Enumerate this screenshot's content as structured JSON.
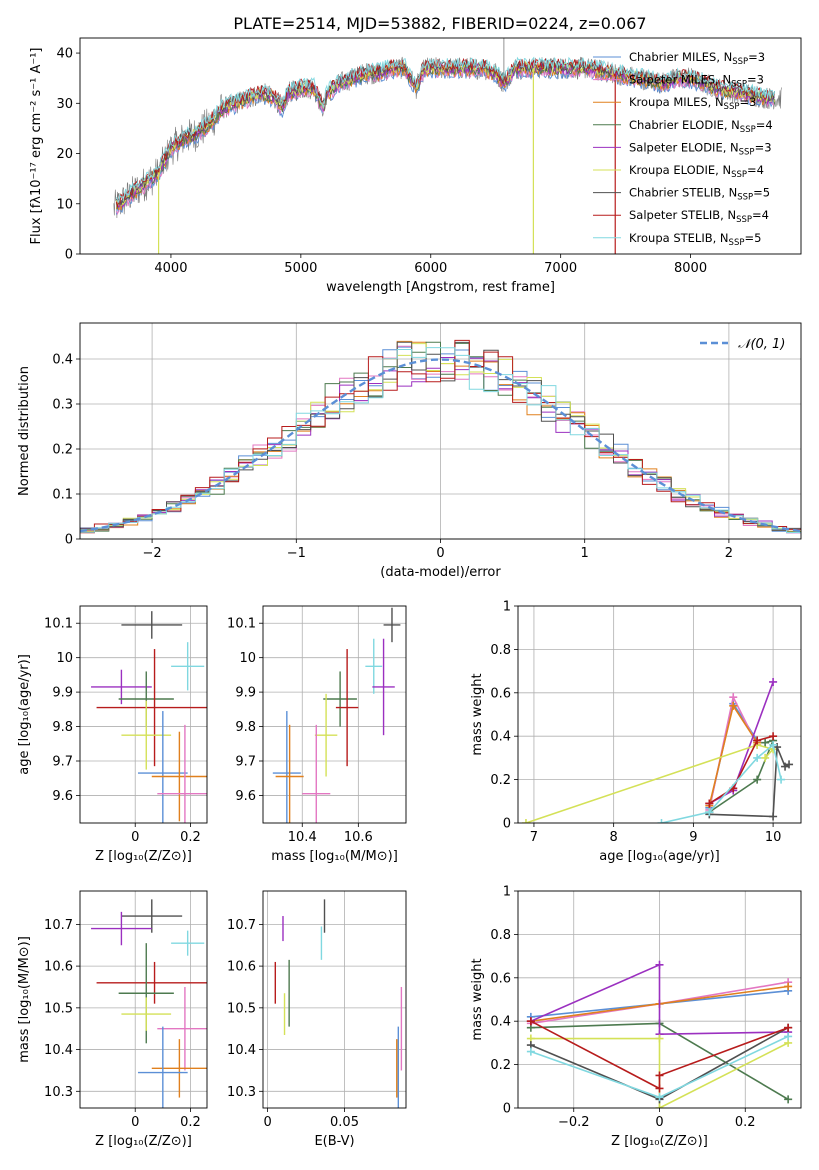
{
  "figure_title": "PLATE=2514, MJD=53882, FIBERID=0224, z=0.067",
  "colors": {
    "Chabrier MILES": "#5b8fd6",
    "Salpeter MILES": "#e377c2",
    "Kroupa MILES": "#e0801e",
    "Chabrier ELODIE": "#4d7a4f",
    "Salpeter ELODIE": "#9b30c0",
    "Kroupa ELODIE": "#d4e157",
    "Chabrier STELIB": "#505050",
    "Salpeter STELIB": "#b71c1c",
    "Kroupa STELIB": "#80d8e0"
  },
  "chart_data": [
    {
      "id": "spectrum",
      "type": "line",
      "title": "PLATE=2514, MJD=53882, FIBERID=0224, z=0.067",
      "xlabel": "wavelength [Angstrom, rest frame]",
      "ylabel": "Flux [fλ10⁻¹⁷ erg cm⁻² s⁻¹ A⁻¹]",
      "xlim": [
        3300,
        8850
      ],
      "ylim": [
        0,
        43
      ],
      "xticks": [
        4000,
        5000,
        6000,
        7000,
        8000
      ],
      "yticks": [
        0,
        10,
        20,
        30,
        40
      ],
      "legend_position": "upper-right",
      "legend": [
        {
          "prefix": "Chabrier MILES, N",
          "sub": "SSP",
          "suffix": "=3"
        },
        {
          "prefix": "Salpeter MILES, N",
          "sub": "SSP",
          "suffix": "=3"
        },
        {
          "prefix": "Kroupa MILES, N",
          "sub": "SSP",
          "suffix": "=3"
        },
        {
          "prefix": "Chabrier ELODIE, N",
          "sub": "SSP",
          "suffix": "=4"
        },
        {
          "prefix": "Salpeter ELODIE, N",
          "sub": "SSP",
          "suffix": "=3"
        },
        {
          "prefix": "Kroupa ELODIE, N",
          "sub": "SSP",
          "suffix": "=4"
        },
        {
          "prefix": "Chabrier STELIB, N",
          "sub": "SSP",
          "suffix": "=5"
        },
        {
          "prefix": "Salpeter STELIB, N",
          "sub": "SSP",
          "suffix": "=4"
        },
        {
          "prefix": "Kroupa STELIB, N",
          "sub": "SSP",
          "suffix": "=5"
        }
      ],
      "continuum": [
        [
          3560,
          9
        ],
        [
          3700,
          12
        ],
        [
          3800,
          14
        ],
        [
          3900,
          16
        ],
        [
          3960,
          19
        ],
        [
          4000,
          21
        ],
        [
          4100,
          23
        ],
        [
          4200,
          24
        ],
        [
          4300,
          26
        ],
        [
          4400,
          29
        ],
        [
          4500,
          30
        ],
        [
          4600,
          31
        ],
        [
          4700,
          32
        ],
        [
          4800,
          31
        ],
        [
          4860,
          29
        ],
        [
          4900,
          32
        ],
        [
          5000,
          33
        ],
        [
          5100,
          33
        ],
        [
          5175,
          29
        ],
        [
          5200,
          32
        ],
        [
          5300,
          34
        ],
        [
          5400,
          35
        ],
        [
          5500,
          36
        ],
        [
          5600,
          36
        ],
        [
          5700,
          37
        ],
        [
          5800,
          37
        ],
        [
          5890,
          33
        ],
        [
          5950,
          37
        ],
        [
          6000,
          37
        ],
        [
          6100,
          37
        ],
        [
          6200,
          37
        ],
        [
          6300,
          37
        ],
        [
          6400,
          37
        ],
        [
          6500,
          36
        ],
        [
          6563,
          34
        ],
        [
          6650,
          37
        ],
        [
          6800,
          37
        ],
        [
          7000,
          37
        ],
        [
          7200,
          37
        ],
        [
          7400,
          36
        ],
        [
          7600,
          35
        ],
        [
          7800,
          34
        ],
        [
          7900,
          35
        ],
        [
          8000,
          35
        ],
        [
          8200,
          33
        ],
        [
          8400,
          32
        ],
        [
          8600,
          31
        ],
        [
          8700,
          31
        ]
      ],
      "spikes": [
        {
          "x": 6563,
          "peak": 43
        },
        {
          "x": 6790,
          "drop_to": 0,
          "series": "Kroupa ELODIE"
        },
        {
          "x": 7420,
          "drop_to": 0,
          "series": "Salpeter STELIB"
        },
        {
          "x": 3905,
          "drop_to": 0,
          "series": "Kroupa ELODIE"
        }
      ]
    },
    {
      "id": "residual_histogram",
      "type": "line",
      "xlabel": "(data-model)/error",
      "ylabel": "Normed distribution",
      "xlim": [
        -2.5,
        2.5
      ],
      "ylim": [
        0,
        0.48
      ],
      "xticks": [
        -2,
        -1,
        0,
        1,
        2
      ],
      "yticks": [
        0.0,
        0.1,
        0.2,
        0.3,
        0.4
      ],
      "grid": true,
      "legend_position": "upper-right",
      "gaussian_label": "𝒩(0, 1)",
      "gaussian_color": "#5b8fd6",
      "bin_width": 0.1
    },
    {
      "id": "age_vs_Z",
      "type": "scatter",
      "error_bars": true,
      "xlabel": "Z [log₁₀(Z/Z⊙)]",
      "ylabel": "age  [log₁₀(age/yr)]",
      "xlim": [
        -0.2,
        0.26
      ],
      "ylim": [
        9.52,
        10.15
      ],
      "xticks": [
        0.0,
        0.2
      ],
      "yticks": [
        9.6,
        9.7,
        9.8,
        9.9,
        10.0,
        10.1
      ],
      "grid": true,
      "points": [
        {
          "series": "Chabrier STELIB",
          "x": 0.06,
          "y": 10.095,
          "ex": 0.11,
          "ey": 0.04
        },
        {
          "series": "Kroupa STELIB",
          "x": 0.19,
          "y": 9.975,
          "ex": 0.06,
          "ey": 0.07
        },
        {
          "series": "Salpeter ELODIE",
          "x": -0.05,
          "y": 9.915,
          "ex": 0.11,
          "ey": 0.05
        },
        {
          "series": "Chabrier ELODIE",
          "x": 0.04,
          "y": 9.88,
          "ex": 0.1,
          "ey": 0.08
        },
        {
          "series": "Salpeter STELIB",
          "x": 0.07,
          "y": 9.855,
          "ex": 0.21,
          "ey": 0.17
        },
        {
          "series": "Kroupa ELODIE",
          "x": 0.04,
          "y": 9.775,
          "ex": 0.09,
          "ey": 0.1
        },
        {
          "series": "Chabrier MILES",
          "x": 0.1,
          "y": 9.665,
          "ex": 0.09,
          "ey": 0.18
        },
        {
          "series": "Kroupa MILES",
          "x": 0.16,
          "y": 9.655,
          "ex": 0.1,
          "ey": 0.13
        },
        {
          "series": "Salpeter MILES",
          "x": 0.18,
          "y": 9.605,
          "ex": 0.1,
          "ey": 0.2
        }
      ]
    },
    {
      "id": "age_vs_mass",
      "type": "scatter",
      "error_bars": true,
      "xlabel": "mass [log₁₀(M/M⊙)]",
      "ylabel": "",
      "xlim": [
        10.26,
        10.77
      ],
      "ylim": [
        9.52,
        10.15
      ],
      "xticks": [
        10.4,
        10.6
      ],
      "yticks": [
        9.6,
        9.7,
        9.8,
        9.9,
        10.0,
        10.1
      ],
      "grid": true,
      "points": [
        {
          "series": "Chabrier STELIB",
          "x": 10.72,
          "y": 10.095,
          "ex": 0.03,
          "ey": 0.05
        },
        {
          "series": "Kroupa STELIB",
          "x": 10.655,
          "y": 9.975,
          "ex": 0.03,
          "ey": 0.08
        },
        {
          "series": "Salpeter ELODIE",
          "x": 10.69,
          "y": 9.915,
          "ex": 0.04,
          "ey": 0.14
        },
        {
          "series": "Chabrier ELODIE",
          "x": 10.535,
          "y": 9.88,
          "ex": 0.06,
          "ey": 0.08
        },
        {
          "series": "Salpeter STELIB",
          "x": 10.56,
          "y": 9.855,
          "ex": 0.04,
          "ey": 0.17
        },
        {
          "series": "Kroupa ELODIE",
          "x": 10.485,
          "y": 9.775,
          "ex": 0.04,
          "ey": 0.12
        },
        {
          "series": "Chabrier MILES",
          "x": 10.345,
          "y": 9.665,
          "ex": 0.05,
          "ey": 0.18
        },
        {
          "series": "Kroupa MILES",
          "x": 10.355,
          "y": 9.655,
          "ex": 0.05,
          "ey": 0.15
        },
        {
          "series": "Salpeter MILES",
          "x": 10.45,
          "y": 9.605,
          "ex": 0.05,
          "ey": 0.2
        }
      ]
    },
    {
      "id": "weight_vs_age",
      "type": "line",
      "xlabel": "age  [log₁₀(age/yr)]",
      "ylabel": "mass weight",
      "xlim": [
        6.8,
        10.35
      ],
      "ylim": [
        0,
        1.0
      ],
      "xticks": [
        7,
        8,
        9,
        10
      ],
      "yticks": [
        0.0,
        0.2,
        0.4,
        0.6,
        0.8,
        1.0
      ],
      "grid": true,
      "series": [
        {
          "name": "Chabrier MILES",
          "points": [
            [
              9.2,
              0.07
            ],
            [
              9.5,
              0.55
            ],
            [
              9.8,
              0.38
            ]
          ]
        },
        {
          "name": "Salpeter MILES",
          "points": [
            [
              9.2,
              0.06
            ],
            [
              9.5,
              0.58
            ],
            [
              9.8,
              0.36
            ]
          ]
        },
        {
          "name": "Kroupa MILES",
          "points": [
            [
              9.2,
              0.08
            ],
            [
              9.5,
              0.54
            ],
            [
              9.8,
              0.37
            ]
          ]
        },
        {
          "name": "Chabrier ELODIE",
          "points": [
            [
              9.2,
              0.05
            ],
            [
              9.8,
              0.2
            ],
            [
              10.0,
              0.38
            ],
            [
              9.9,
              0.37
            ]
          ]
        },
        {
          "name": "Salpeter ELODIE",
          "points": [
            [
              9.2,
              0.09
            ],
            [
              9.5,
              0.15
            ],
            [
              10.0,
              0.65
            ]
          ]
        },
        {
          "name": "Kroupa ELODIE",
          "points": [
            [
              6.9,
              0.0
            ],
            [
              9.8,
              0.36
            ],
            [
              10.0,
              0.34
            ],
            [
              9.9,
              0.3
            ]
          ]
        },
        {
          "name": "Chabrier STELIB",
          "points": [
            [
              9.2,
              0.04
            ],
            [
              10.0,
              0.03
            ],
            [
              10.05,
              0.35
            ],
            [
              10.15,
              0.26
            ],
            [
              10.2,
              0.27
            ]
          ]
        },
        {
          "name": "Salpeter STELIB",
          "points": [
            [
              9.2,
              0.09
            ],
            [
              9.5,
              0.16
            ],
            [
              9.8,
              0.38
            ],
            [
              10.0,
              0.4
            ]
          ]
        },
        {
          "name": "Kroupa STELIB",
          "points": [
            [
              8.6,
              0.0
            ],
            [
              9.2,
              0.05
            ],
            [
              9.8,
              0.3
            ],
            [
              10.0,
              0.36
            ],
            [
              10.1,
              0.2
            ]
          ]
        }
      ]
    },
    {
      "id": "mass_vs_Z",
      "type": "scatter",
      "error_bars": true,
      "xlabel": "Z [log₁₀(Z/Z⊙)]",
      "ylabel": "mass [log₁₀(M/M⊙)]",
      "xlim": [
        -0.2,
        0.26
      ],
      "ylim": [
        10.26,
        10.78
      ],
      "xticks": [
        0.0,
        0.2
      ],
      "yticks": [
        10.3,
        10.4,
        10.5,
        10.6,
        10.7
      ],
      "grid": true,
      "points": [
        {
          "series": "Chabrier STELIB",
          "x": 0.06,
          "y": 10.72,
          "ex": 0.11,
          "ey": 0.04
        },
        {
          "series": "Salpeter ELODIE",
          "x": -0.05,
          "y": 10.69,
          "ex": 0.11,
          "ey": 0.04
        },
        {
          "series": "Kroupa STELIB",
          "x": 0.19,
          "y": 10.655,
          "ex": 0.06,
          "ey": 0.03
        },
        {
          "series": "Salpeter STELIB",
          "x": 0.07,
          "y": 10.56,
          "ex": 0.21,
          "ey": 0.05
        },
        {
          "series": "Chabrier ELODIE",
          "x": 0.04,
          "y": 10.535,
          "ex": 0.1,
          "ey": 0.12
        },
        {
          "series": "Kroupa ELODIE",
          "x": 0.04,
          "y": 10.485,
          "ex": 0.09,
          "ey": 0.04
        },
        {
          "series": "Salpeter MILES",
          "x": 0.18,
          "y": 10.45,
          "ex": 0.1,
          "ey": 0.1
        },
        {
          "series": "Kroupa MILES",
          "x": 0.16,
          "y": 10.355,
          "ex": 0.1,
          "ey": 0.07
        },
        {
          "series": "Chabrier MILES",
          "x": 0.1,
          "y": 10.345,
          "ex": 0.09,
          "ey": 0.11
        }
      ]
    },
    {
      "id": "mass_vs_ebv",
      "type": "scatter",
      "error_bars": true,
      "xlabel": "E(B-V)",
      "ylabel": "",
      "xlim": [
        -0.003,
        0.09
      ],
      "ylim": [
        10.26,
        10.78
      ],
      "xticks": [
        0.0,
        0.05
      ],
      "yticks": [
        10.3,
        10.4,
        10.5,
        10.6,
        10.7
      ],
      "grid": true,
      "points": [
        {
          "series": "Chabrier STELIB",
          "x": 0.037,
          "y": 10.72,
          "ex": 0,
          "ey": 0.04
        },
        {
          "series": "Salpeter ELODIE",
          "x": 0.01,
          "y": 10.69,
          "ex": 0,
          "ey": 0.03
        },
        {
          "series": "Kroupa STELIB",
          "x": 0.035,
          "y": 10.655,
          "ex": 0,
          "ey": 0.04
        },
        {
          "series": "Salpeter STELIB",
          "x": 0.005,
          "y": 10.56,
          "ex": 0,
          "ey": 0.05
        },
        {
          "series": "Chabrier ELODIE",
          "x": 0.014,
          "y": 10.535,
          "ex": 0,
          "ey": 0.08
        },
        {
          "series": "Kroupa ELODIE",
          "x": 0.011,
          "y": 10.485,
          "ex": 0,
          "ey": 0.05
        },
        {
          "series": "Salpeter MILES",
          "x": 0.087,
          "y": 10.45,
          "ex": 0,
          "ey": 0.1
        },
        {
          "series": "Kroupa MILES",
          "x": 0.084,
          "y": 10.355,
          "ex": 0,
          "ey": 0.07
        },
        {
          "series": "Chabrier MILES",
          "x": 0.085,
          "y": 10.345,
          "ex": 0,
          "ey": 0.11
        }
      ]
    },
    {
      "id": "weight_vs_Z",
      "type": "line",
      "xlabel": "Z [log₁₀(Z/Z⊙)]",
      "ylabel": "mass weight",
      "xlim": [
        -0.33,
        0.33
      ],
      "ylim": [
        0,
        1.0
      ],
      "xticks": [
        -0.2,
        0.0,
        0.2
      ],
      "yticks": [
        0.0,
        0.2,
        0.4,
        0.6,
        0.8,
        1.0
      ],
      "grid": true,
      "series": [
        {
          "name": "Chabrier MILES",
          "points": [
            [
              -0.3,
              0.42
            ],
            [
              0.0,
              0.48
            ],
            [
              0.3,
              0.54
            ]
          ]
        },
        {
          "name": "Salpeter MILES",
          "points": [
            [
              -0.3,
              0.39
            ],
            [
              0.0,
              0.48
            ],
            [
              0.3,
              0.58
            ]
          ]
        },
        {
          "name": "Kroupa MILES",
          "points": [
            [
              -0.3,
              0.4
            ],
            [
              0.0,
              0.48
            ],
            [
              0.3,
              0.56
            ]
          ]
        },
        {
          "name": "Chabrier ELODIE",
          "points": [
            [
              -0.3,
              0.37
            ],
            [
              0.0,
              0.39
            ],
            [
              0.3,
              0.04
            ]
          ]
        },
        {
          "name": "Salpeter ELODIE",
          "points": [
            [
              -0.3,
              0.4
            ],
            [
              0.0,
              0.66
            ],
            [
              0.0,
              0.34
            ],
            [
              0.3,
              0.35
            ]
          ]
        },
        {
          "name": "Kroupa ELODIE",
          "points": [
            [
              -0.3,
              0.32
            ],
            [
              0.0,
              0.32
            ],
            [
              0.0,
              0.0
            ],
            [
              0.3,
              0.3
            ]
          ]
        },
        {
          "name": "Chabrier STELIB",
          "points": [
            [
              -0.3,
              0.29
            ],
            [
              0.0,
              0.04
            ],
            [
              0.3,
              0.37
            ]
          ]
        },
        {
          "name": "Salpeter STELIB",
          "points": [
            [
              -0.3,
              0.4
            ],
            [
              0.0,
              0.09
            ],
            [
              0.0,
              0.15
            ],
            [
              0.3,
              0.37
            ]
          ]
        },
        {
          "name": "Kroupa STELIB",
          "points": [
            [
              -0.3,
              0.26
            ],
            [
              0.0,
              0.05
            ],
            [
              0.3,
              0.33
            ]
          ]
        }
      ]
    }
  ]
}
